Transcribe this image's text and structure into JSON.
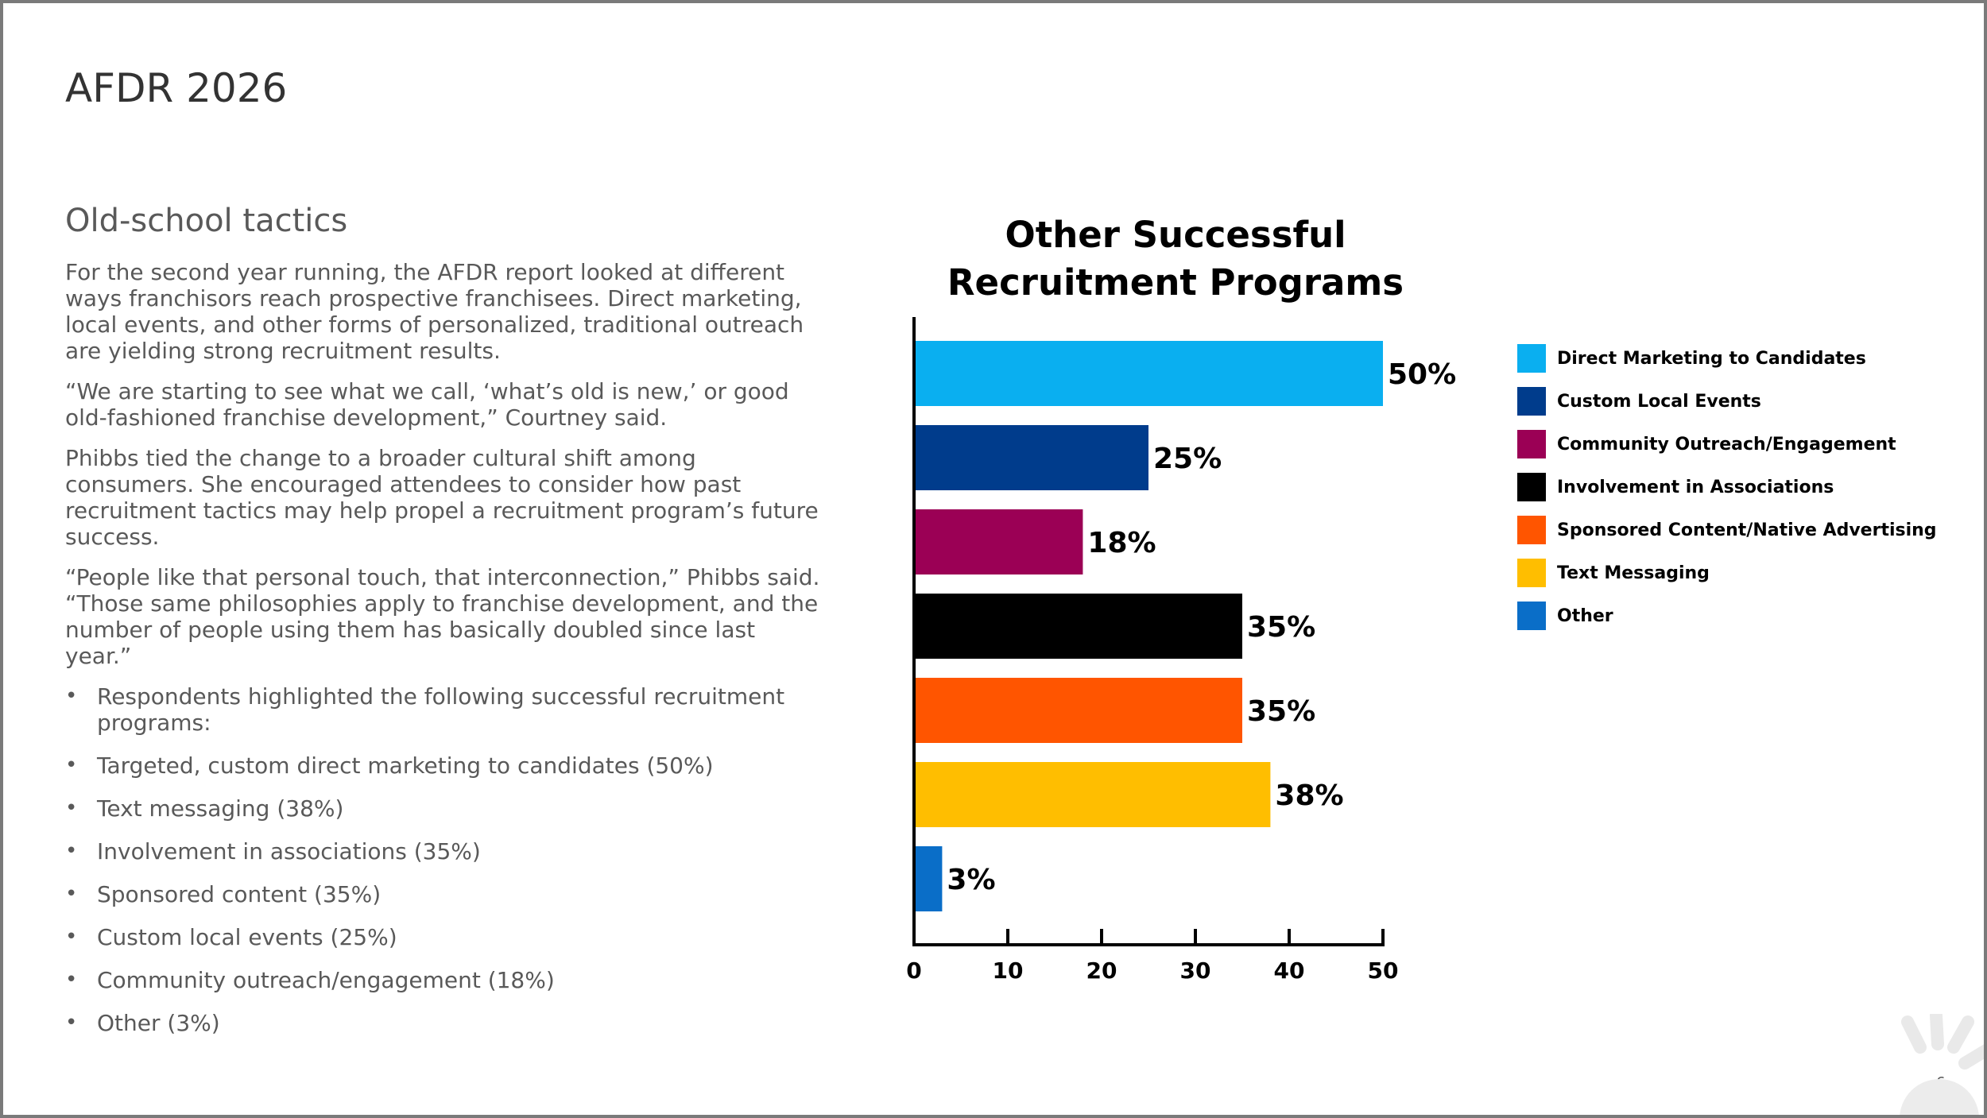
{
  "slide": {
    "title": "AFDR 2026",
    "subtitle": "Old-school tactics",
    "paragraphs": [
      "For the second year running, the AFDR report looked at different ways franchisors reach prospective franchisees. Direct marketing, local events, and other forms of personalized, traditional outreach are yielding strong recruitment results.",
      "“We are starting to see what we call, ‘what’s old is new,’ or good old-fashioned franchise development,” Courtney said.",
      "Phibbs tied the change to a broader cultural shift among consumers. She encouraged attendees to consider how past recruitment tactics may help propel a recruitment program’s future success.",
      "“People like that personal touch, that interconnection,” Phibbs said. “Those same philosophies apply to franchise development, and the number of people using them has basically doubled since last year.”"
    ],
    "bullets": [
      "Respondents highlighted the following successful recruitment programs:",
      "Targeted, custom direct marketing to candidates (50%)",
      "Text messaging (38%)",
      "Involvement in associations (35%)",
      "Sponsored content (35%)",
      "Custom local events (25%)",
      "Community outreach/engagement (18%)",
      "Other (3%)"
    ],
    "page_number": "6"
  },
  "chart_data": {
    "type": "bar",
    "orientation": "horizontal",
    "title": "Other Successful Recruitment Programs",
    "categories": [
      "Direct Marketing to Candidates",
      "Custom Local Events",
      "Community Outreach/Engagement",
      "Involvement in Associations",
      "Sponsored Content/Native Advertising",
      "Text Messaging",
      "Other"
    ],
    "values": [
      50,
      25,
      18,
      35,
      35,
      38,
      3
    ],
    "data_labels": [
      "50%",
      "25%",
      "18%",
      "35%",
      "35%",
      "38%",
      "3%"
    ],
    "colors": [
      "#0AAFF0",
      "#003C8C",
      "#9B0055",
      "#000000",
      "#FF5500",
      "#FFBE00",
      "#0A6EC8"
    ],
    "xlim": [
      0,
      50
    ],
    "xticks": [
      0,
      10,
      20,
      30,
      40,
      50
    ],
    "legend_position": "right",
    "grid": false
  }
}
